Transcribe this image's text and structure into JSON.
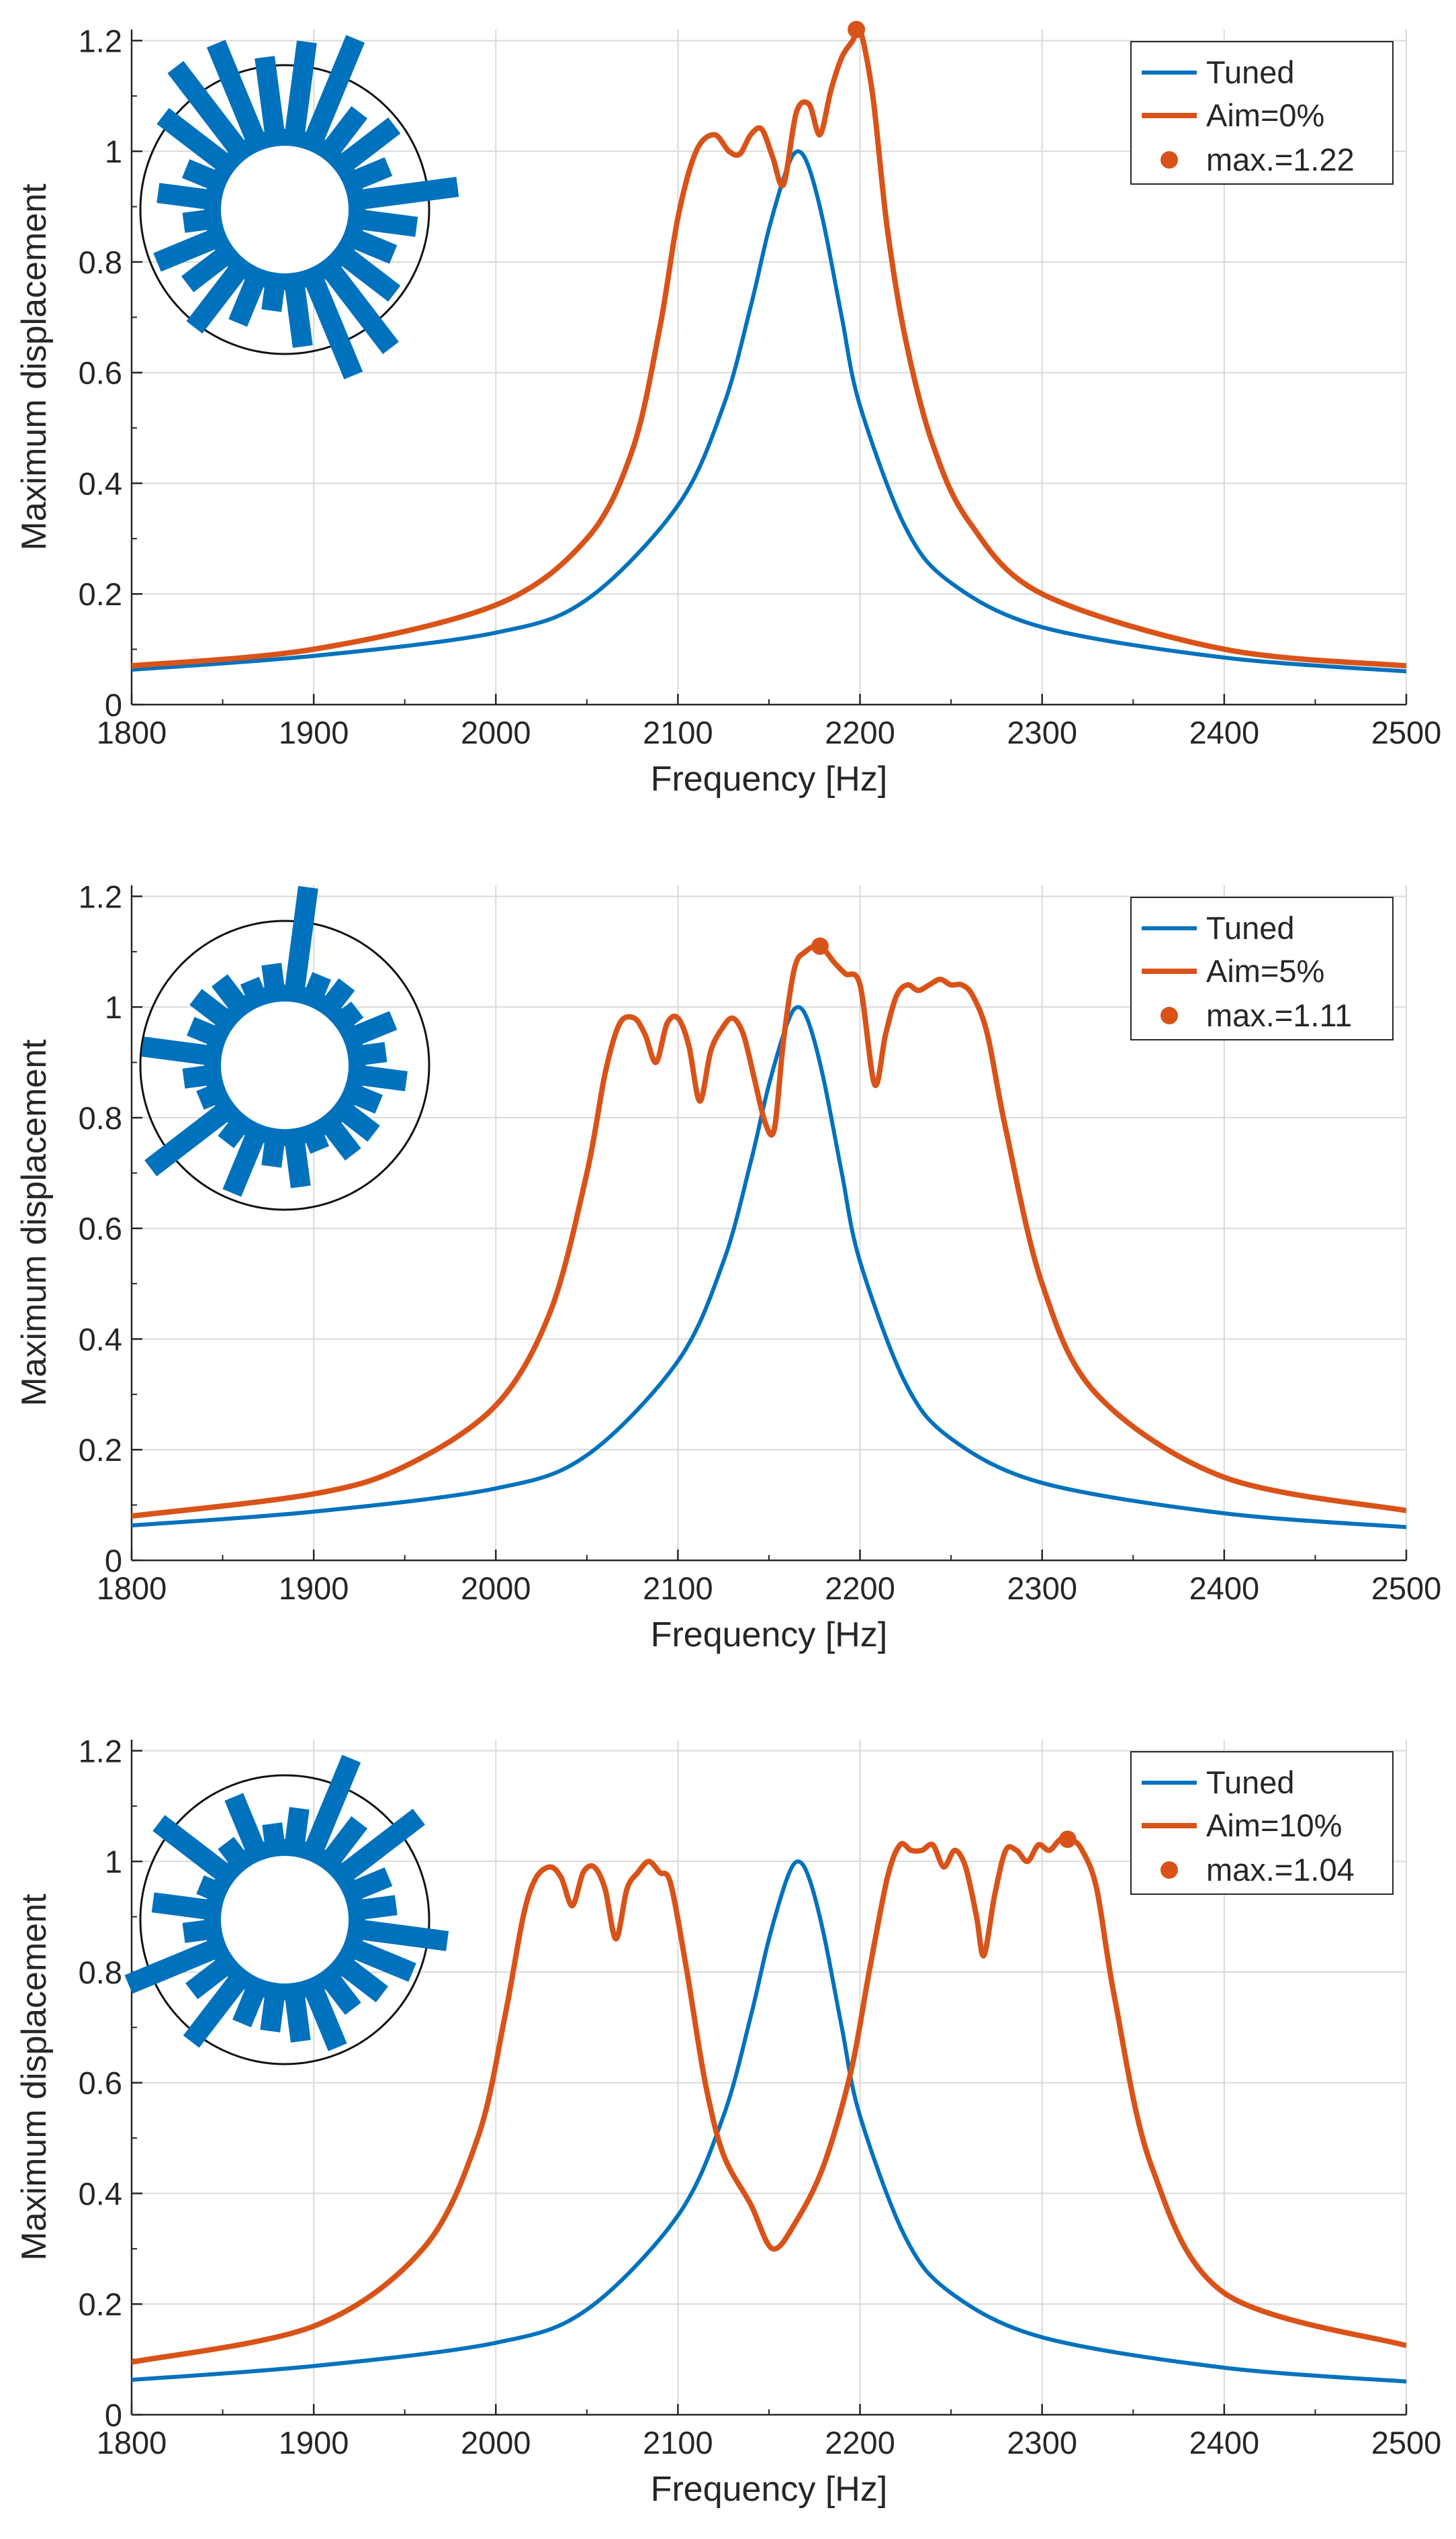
{
  "colors": {
    "tuned": "#0072BD",
    "aim": "#D95319",
    "grid": "#d9d9d9",
    "axis": "#262626"
  },
  "chart_data": [
    {
      "type": "line",
      "xlabel": "Frequency [Hz]",
      "ylabel": "Maximum displacement",
      "xlim": [
        1800,
        2500
      ],
      "ylim": [
        0,
        1.22
      ],
      "xticks": [
        "1800",
        "1900",
        "2000",
        "2100",
        "2200",
        "2300",
        "2400",
        "2500"
      ],
      "yticks": [
        "0",
        "0.2",
        "0.4",
        "0.6",
        "0.8",
        "1",
        "1.2"
      ],
      "grid": true,
      "legend_position": "top-right",
      "legend": [
        "Tuned",
        "Aim=0%",
        "max.=1.22"
      ],
      "max_point": {
        "x": 2198,
        "y": 1.22
      },
      "inset_bars": [
        0.85,
        1.0,
        0.4,
        0.55,
        0.3,
        0.9,
        0.5,
        0.35,
        0.55,
        0.9,
        0.95,
        0.55,
        0.2,
        0.4,
        0.65,
        0.4,
        0.55,
        0.2,
        0.45,
        0.25,
        0.7,
        0.95,
        0.95,
        0.7
      ],
      "series": [
        {
          "name": "Tuned",
          "x": [
            1800,
            1900,
            2000,
            2050,
            2100,
            2125,
            2140,
            2150,
            2160,
            2166,
            2172,
            2180,
            2190,
            2200,
            2225,
            2250,
            2300,
            2400,
            2500
          ],
          "y": [
            0.063,
            0.088,
            0.13,
            0.19,
            0.36,
            0.54,
            0.72,
            0.86,
            0.97,
            1.0,
            0.97,
            0.87,
            0.7,
            0.54,
            0.32,
            0.22,
            0.14,
            0.085,
            0.06
          ]
        },
        {
          "name": "Aim=0%",
          "x": [
            1800,
            1900,
            2000,
            2050,
            2075,
            2090,
            2100,
            2110,
            2120,
            2128,
            2134,
            2140,
            2146,
            2152,
            2158,
            2165,
            2172,
            2178,
            2184,
            2190,
            2196,
            2200,
            2207,
            2215,
            2225,
            2240,
            2260,
            2300,
            2400,
            2500
          ],
          "y": [
            0.07,
            0.1,
            0.18,
            0.3,
            0.46,
            0.68,
            0.88,
            1.0,
            1.03,
            1.0,
            0.995,
            1.03,
            1.04,
            0.99,
            0.94,
            1.07,
            1.085,
            1.03,
            1.11,
            1.17,
            1.2,
            1.22,
            1.1,
            0.86,
            0.66,
            0.47,
            0.33,
            0.2,
            0.1,
            0.07
          ]
        }
      ]
    },
    {
      "type": "line",
      "xlabel": "Frequency [Hz]",
      "ylabel": "Maximum displacement",
      "xlim": [
        1800,
        2500
      ],
      "ylim": [
        0,
        1.22
      ],
      "xticks": [
        "1800",
        "1900",
        "2000",
        "2100",
        "2200",
        "2300",
        "2400",
        "2500"
      ],
      "yticks": [
        "0",
        "0.2",
        "0.4",
        "0.6",
        "0.8",
        "1",
        "1.2"
      ],
      "grid": true,
      "legend_position": "top-right",
      "legend": [
        "Tuned",
        "Aim=5%",
        "max.=1.11"
      ],
      "max_point": {
        "x": 2178,
        "y": 1.11
      },
      "inset_bars": [
        0.95,
        0.15,
        0.2,
        0.1,
        0.35,
        0.2,
        0.4,
        0.2,
        0.3,
        0.3,
        0.1,
        0.4,
        0.2,
        0.55,
        0.15,
        0.85,
        0.1,
        0.2,
        0.6,
        0.2,
        0.3,
        0.25,
        0.1,
        0.2
      ],
      "series": [
        {
          "name": "Tuned",
          "x": [
            1800,
            1900,
            2000,
            2050,
            2100,
            2125,
            2140,
            2150,
            2160,
            2166,
            2172,
            2180,
            2190,
            2200,
            2225,
            2250,
            2300,
            2400,
            2500
          ],
          "y": [
            0.063,
            0.088,
            0.13,
            0.19,
            0.36,
            0.54,
            0.72,
            0.86,
            0.97,
            1.0,
            0.97,
            0.87,
            0.7,
            0.54,
            0.32,
            0.22,
            0.14,
            0.085,
            0.06
          ]
        },
        {
          "name": "Aim=5%",
          "x": [
            1800,
            1900,
            1950,
            2000,
            2030,
            2050,
            2060,
            2068,
            2076,
            2082,
            2088,
            2094,
            2100,
            2106,
            2112,
            2118,
            2124,
            2130,
            2136,
            2142,
            2148,
            2153,
            2158,
            2164,
            2170,
            2178,
            2186,
            2192,
            2200,
            2208,
            2214,
            2220,
            2226,
            2232,
            2238,
            2244,
            2250,
            2256,
            2262,
            2270,
            2280,
            2300,
            2330,
            2400,
            2500
          ],
          "y": [
            0.08,
            0.12,
            0.17,
            0.28,
            0.45,
            0.7,
            0.88,
            0.97,
            0.98,
            0.95,
            0.9,
            0.97,
            0.98,
            0.93,
            0.83,
            0.92,
            0.96,
            0.98,
            0.95,
            0.87,
            0.79,
            0.78,
            0.94,
            1.07,
            1.1,
            1.11,
            1.08,
            1.06,
            1.04,
            0.86,
            0.95,
            1.02,
            1.04,
            1.03,
            1.04,
            1.05,
            1.04,
            1.04,
            1.02,
            0.95,
            0.78,
            0.5,
            0.3,
            0.15,
            0.09
          ]
        }
      ]
    },
    {
      "type": "line",
      "xlabel": "Frequency [Hz]",
      "ylabel": "Maximum displacement",
      "xlim": [
        1800,
        2500
      ],
      "ylim": [
        0,
        1.22
      ],
      "xticks": [
        "1800",
        "1900",
        "2000",
        "2100",
        "2200",
        "2300",
        "2400",
        "2500"
      ],
      "yticks": [
        "0",
        "0.2",
        "0.4",
        "0.6",
        "0.8",
        "1",
        "1.2"
      ],
      "grid": true,
      "legend_position": "top-right",
      "legend": [
        "Tuned",
        "Aim=10%",
        "max.=1.04"
      ],
      "max_point": {
        "x": 2314,
        "y": 1.04
      },
      "inset_bars": [
        0.3,
        0.9,
        0.4,
        0.85,
        0.3,
        0.3,
        0.8,
        0.55,
        0.4,
        0.3,
        0.55,
        0.4,
        0.3,
        0.3,
        0.7,
        0.35,
        0.85,
        0.2,
        0.5,
        0.1,
        0.75,
        0.15,
        0.5,
        0.15
      ],
      "series": [
        {
          "name": "Tuned",
          "x": [
            1800,
            1900,
            2000,
            2050,
            2100,
            2125,
            2140,
            2150,
            2160,
            2166,
            2172,
            2180,
            2190,
            2200,
            2225,
            2250,
            2300,
            2400,
            2500
          ],
          "y": [
            0.063,
            0.088,
            0.13,
            0.19,
            0.36,
            0.54,
            0.72,
            0.86,
            0.97,
            1.0,
            0.97,
            0.87,
            0.7,
            0.54,
            0.32,
            0.22,
            0.14,
            0.085,
            0.06
          ]
        },
        {
          "name": "Aim=10%",
          "x": [
            1800,
            1900,
            1960,
            1990,
            2005,
            2015,
            2022,
            2030,
            2036,
            2042,
            2048,
            2054,
            2060,
            2066,
            2072,
            2078,
            2084,
            2090,
            2096,
            2105,
            2115,
            2125,
            2140,
            2152,
            2165,
            2180,
            2195,
            2205,
            2215,
            2222,
            2228,
            2234,
            2240,
            2246,
            2252,
            2258,
            2264,
            2268,
            2274,
            2280,
            2286,
            2292,
            2298,
            2304,
            2310,
            2316,
            2322,
            2330,
            2340,
            2360,
            2400,
            2500
          ],
          "y": [
            0.095,
            0.16,
            0.3,
            0.5,
            0.72,
            0.9,
            0.97,
            0.99,
            0.97,
            0.92,
            0.98,
            0.99,
            0.95,
            0.86,
            0.95,
            0.98,
            1.0,
            0.98,
            0.96,
            0.8,
            0.6,
            0.47,
            0.38,
            0.3,
            0.35,
            0.45,
            0.62,
            0.8,
            0.97,
            1.03,
            1.02,
            1.02,
            1.03,
            0.99,
            1.02,
            0.99,
            0.9,
            0.83,
            0.94,
            1.02,
            1.02,
            1.0,
            1.03,
            1.02,
            1.04,
            1.04,
            1.02,
            0.95,
            0.75,
            0.45,
            0.22,
            0.125
          ]
        }
      ]
    }
  ]
}
